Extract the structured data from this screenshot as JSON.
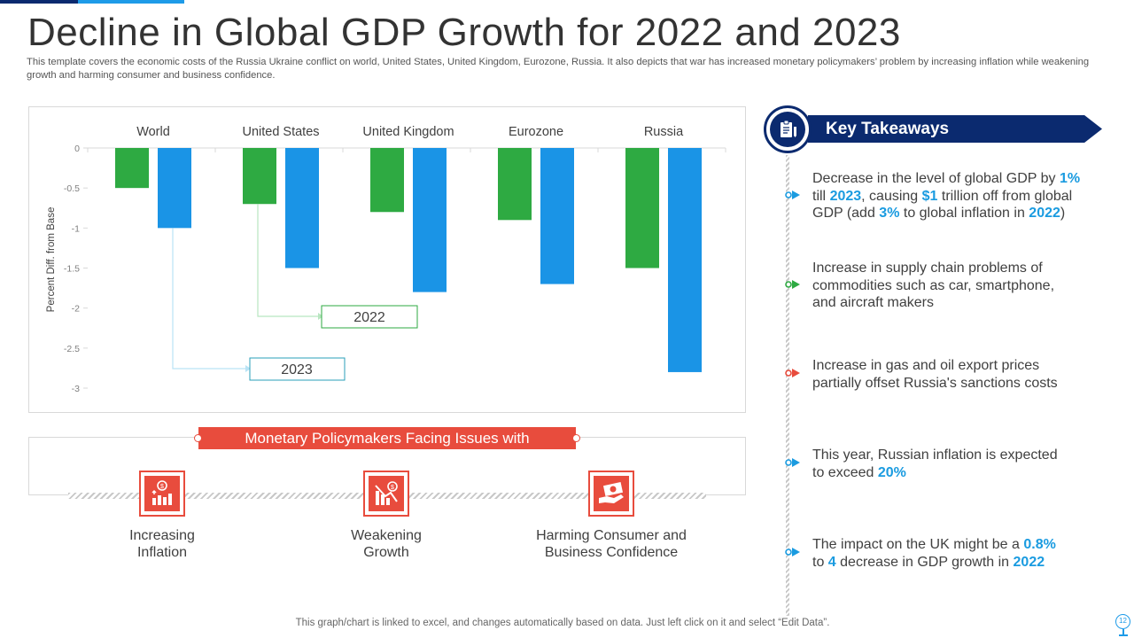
{
  "title": "Decline in Global GDP Growth for 2022 and 2023",
  "subtitle": "This template covers the economic costs of the Russia Ukraine conflict on world, United States, United Kingdom, Eurozone, Russia. It also depicts that war has increased monetary policymakers’ problem by increasing inflation while weakening growth and harming consumer and business confidence.",
  "colors": {
    "series_2022": "#2eaa42",
    "series_2023": "#1a94e6",
    "accent_red": "#e84c3d",
    "navy": "#0b2a6f",
    "highlight": "#1a9be0"
  },
  "chart_data": {
    "type": "bar",
    "categories": [
      "World",
      "United States",
      "United Kingdom",
      "Eurozone",
      "Russia"
    ],
    "series": [
      {
        "name": "2022",
        "values": [
          -0.5,
          -0.7,
          -0.8,
          -0.9,
          -1.5
        ]
      },
      {
        "name": "2023",
        "values": [
          -1.0,
          -1.5,
          -1.8,
          -1.7,
          -2.8
        ]
      }
    ],
    "ylabel": "Percent Diff. from Base",
    "xlabel": "",
    "ylim": [
      -3,
      0
    ],
    "yticks": [
      "0",
      "-0.5",
      "-1",
      "-1.5",
      "-2",
      "-2.5",
      "-3"
    ],
    "category_axis_position": "top",
    "legend": "callouts inside plot"
  },
  "issues": {
    "banner": "Monetary Policymakers Facing Issues with",
    "items": [
      {
        "label_line1": "Increasing",
        "label_line2": "Inflation",
        "icon": "inflation-chart-icon"
      },
      {
        "label_line1": "Weakening",
        "label_line2": "Growth",
        "icon": "declining-growth-icon"
      },
      {
        "label_line1": "Harming Consumer and",
        "label_line2": "Business Confidence",
        "icon": "money-hand-icon"
      }
    ]
  },
  "takeaways": {
    "heading": "Key Takeaways",
    "icon": "clipboard-icon",
    "items": [
      {
        "marker_color": "#1a9be0",
        "parts": [
          {
            "text": "Decrease in the level of global GDP by ",
            "hl": false
          },
          {
            "text": "1%",
            "hl": true
          },
          {
            "text": " till ",
            "hl": false
          },
          {
            "text": "2023",
            "hl": true
          },
          {
            "text": ", causing ",
            "hl": false
          },
          {
            "text": "$1",
            "hl": true
          },
          {
            "text": " trillion off from global GDP (add ",
            "hl": false
          },
          {
            "text": "3%",
            "hl": true
          },
          {
            "text": " to global inflation in ",
            "hl": false
          },
          {
            "text": "2022",
            "hl": true
          },
          {
            "text": ")",
            "hl": false
          }
        ]
      },
      {
        "marker_color": "#2eaa42",
        "parts": [
          {
            "text": "Increase in supply chain problems of commodities such as car, smartphone, and aircraft makers",
            "hl": false
          }
        ]
      },
      {
        "marker_color": "#e84c3d",
        "parts": [
          {
            "text": "Increase in gas and oil export prices partially offset Russia's sanctions costs",
            "hl": false
          }
        ]
      },
      {
        "marker_color": "#1a9be0",
        "parts": [
          {
            "text": "This year, Russian inflation is expected to exceed ",
            "hl": false
          },
          {
            "text": "20%",
            "hl": true
          }
        ]
      },
      {
        "marker_color": "#1a9be0",
        "parts": [
          {
            "text": "The impact on the UK might be a ",
            "hl": false
          },
          {
            "text": "0.8%",
            "hl": true
          },
          {
            "text": " to ",
            "hl": false
          },
          {
            "text": "4",
            "hl": true
          },
          {
            "text": " decrease in GDP growth in ",
            "hl": false
          },
          {
            "text": "2022",
            "hl": true
          }
        ]
      }
    ]
  },
  "footer": "This graph/chart is linked to excel, and changes automatically based on data. Just left click on it and select “Edit Data”.",
  "page_number": "12"
}
